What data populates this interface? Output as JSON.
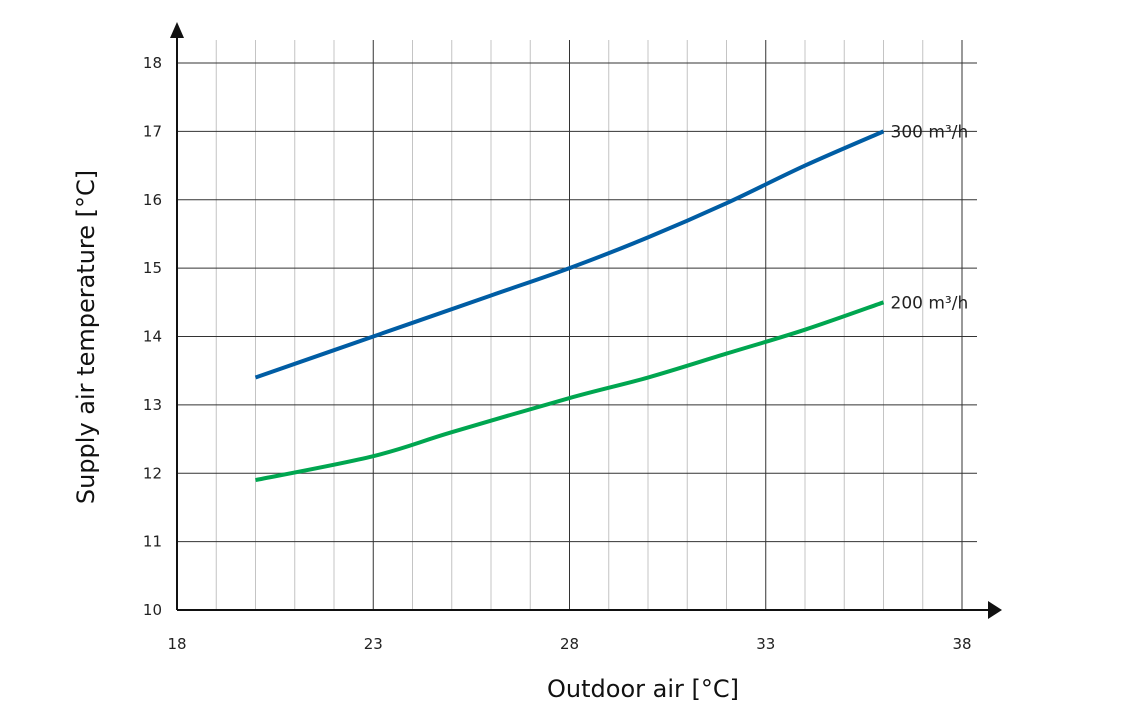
{
  "chart_data": {
    "type": "line",
    "xlabel": "Outdoor air [°C]",
    "ylabel": "Supply air temperature [°C]",
    "xlim": [
      18,
      38
    ],
    "ylim": [
      10,
      18
    ],
    "x_ticks": [
      18,
      23,
      28,
      33,
      38
    ],
    "y_ticks": [
      10,
      11,
      12,
      13,
      14,
      15,
      16,
      17,
      18
    ],
    "x_minor_step": 1,
    "grid": true,
    "series": [
      {
        "name": "300 m³/h",
        "color": "#005da4",
        "x": [
          20,
          23,
          26,
          28,
          30,
          32,
          34,
          36
        ],
        "y": [
          13.4,
          14.0,
          14.6,
          15.0,
          15.45,
          15.95,
          16.5,
          17.0
        ]
      },
      {
        "name": "200 m³/h",
        "color": "#00a650",
        "x": [
          20,
          23,
          25,
          28,
          30,
          32,
          34,
          36
        ],
        "y": [
          11.9,
          12.25,
          12.6,
          13.1,
          13.4,
          13.75,
          14.1,
          14.5
        ]
      }
    ]
  }
}
